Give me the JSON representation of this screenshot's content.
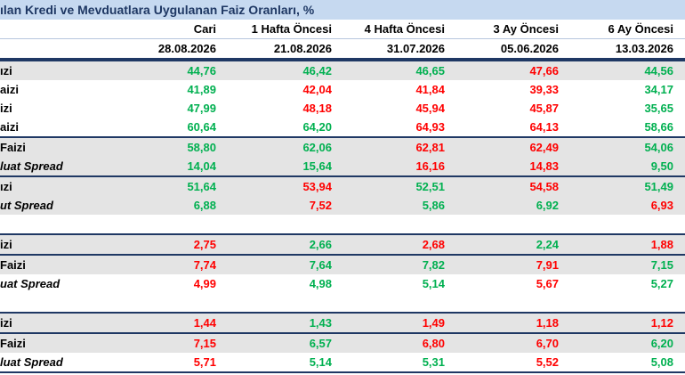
{
  "header": {
    "title": "ılan Kredi ve Mevduatlara Uygulanan Faiz Oranları, %"
  },
  "table": {
    "columns": [
      "Cari",
      "1 Hafta Öncesi",
      "4 Hafta Öncesi",
      "3 Ay Öncesi",
      "6 Ay Öncesi"
    ],
    "dates": [
      "28.08.2026",
      "21.08.2026",
      "31.07.2026",
      "05.06.2026",
      "13.03.2026"
    ],
    "sections": [
      [
        [
          {
            "label": "ızi",
            "shaded": true,
            "italic": false,
            "values": [
              "44,76",
              "46,42",
              "46,65",
              "47,66",
              "44,56"
            ],
            "colors": [
              "green",
              "green",
              "green",
              "red",
              "green"
            ]
          },
          {
            "label": "aizi",
            "shaded": false,
            "italic": false,
            "values": [
              "41,89",
              "42,04",
              "41,84",
              "39,33",
              "34,17"
            ],
            "colors": [
              "green",
              "red",
              "red",
              "red",
              "green"
            ]
          },
          {
            "label": "izi",
            "shaded": false,
            "italic": false,
            "values": [
              "47,99",
              "48,18",
              "45,94",
              "45,87",
              "35,65"
            ],
            "colors": [
              "green",
              "red",
              "red",
              "red",
              "green"
            ]
          },
          {
            "label": "aizi",
            "shaded": false,
            "italic": false,
            "values": [
              "60,64",
              "64,20",
              "64,93",
              "64,13",
              "58,66"
            ],
            "colors": [
              "green",
              "green",
              "red",
              "red",
              "green"
            ]
          }
        ],
        [
          {
            "label": "Faizi",
            "shaded": true,
            "italic": false,
            "values": [
              "58,80",
              "62,06",
              "62,81",
              "62,49",
              "54,06"
            ],
            "colors": [
              "green",
              "green",
              "red",
              "red",
              "green"
            ]
          },
          {
            "label": "luat Spread",
            "shaded": true,
            "italic": true,
            "values": [
              "14,04",
              "15,64",
              "16,16",
              "14,83",
              "9,50"
            ],
            "colors": [
              "green",
              "green",
              "red",
              "red",
              "green"
            ]
          }
        ],
        [
          {
            "label": "ızi",
            "shaded": true,
            "italic": false,
            "values": [
              "51,64",
              "53,94",
              "52,51",
              "54,58",
              "51,49"
            ],
            "colors": [
              "green",
              "red",
              "green",
              "red",
              "green"
            ]
          },
          {
            "label": "ut Spread",
            "shaded": true,
            "italic": true,
            "values": [
              "6,88",
              "7,52",
              "5,86",
              "6,92",
              "6,93"
            ],
            "colors": [
              "green",
              "red",
              "green",
              "green",
              "red"
            ]
          }
        ]
      ],
      [
        [
          {
            "label": "izi",
            "shaded": true,
            "italic": false,
            "values": [
              "2,75",
              "2,66",
              "2,68",
              "2,24",
              "1,88"
            ],
            "colors": [
              "red",
              "green",
              "red",
              "green",
              "red"
            ]
          }
        ],
        [
          {
            "label": "Faizi",
            "shaded": true,
            "italic": false,
            "values": [
              "7,74",
              "7,64",
              "7,82",
              "7,91",
              "7,15"
            ],
            "colors": [
              "red",
              "green",
              "green",
              "red",
              "green"
            ]
          },
          {
            "label": "uat Spread",
            "shaded": false,
            "italic": true,
            "values": [
              "4,99",
              "4,98",
              "5,14",
              "5,67",
              "5,27"
            ],
            "colors": [
              "red",
              "green",
              "green",
              "red",
              "green"
            ]
          }
        ]
      ],
      [
        [
          {
            "label": "izi",
            "shaded": true,
            "italic": false,
            "values": [
              "1,44",
              "1,43",
              "1,49",
              "1,18",
              "1,12"
            ],
            "colors": [
              "red",
              "green",
              "red",
              "red",
              "red"
            ]
          }
        ],
        [
          {
            "label": "Faizi",
            "shaded": true,
            "italic": false,
            "values": [
              "7,15",
              "6,57",
              "6,80",
              "6,70",
              "6,20"
            ],
            "colors": [
              "red",
              "green",
              "red",
              "red",
              "green"
            ]
          },
          {
            "label": "luat Spread",
            "shaded": false,
            "italic": true,
            "values": [
              "5,71",
              "5,14",
              "5,31",
              "5,52",
              "5,08"
            ],
            "colors": [
              "red",
              "green",
              "green",
              "red",
              "green"
            ]
          }
        ]
      ]
    ]
  }
}
